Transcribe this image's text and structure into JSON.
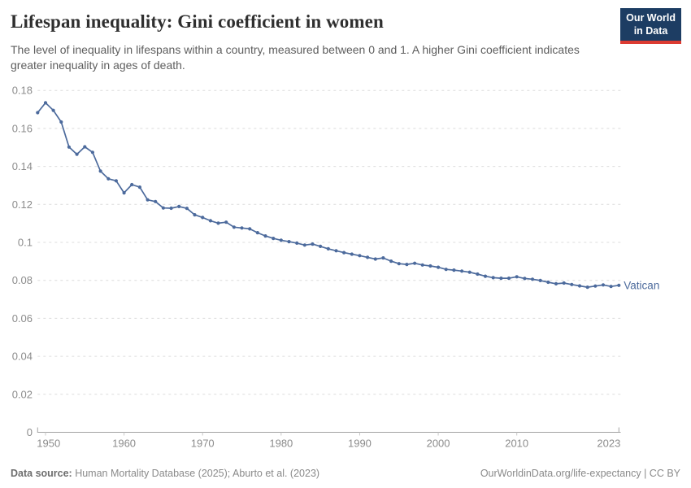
{
  "header": {
    "title": "Lifespan inequality: Gini coefficient in women",
    "subtitle": "The level of inequality in lifespans within a country, measured between 0 and 1. A higher Gini coefficient indicates greater inequality in ages of death.",
    "logo": {
      "line1": "Our World",
      "line2": "in Data",
      "bg_color": "#1d3d63",
      "bar_color": "#dc3b32"
    }
  },
  "footer": {
    "source_label": "Data source:",
    "source_text": " Human Mortality Database (2025); Aburto et al. (2023)",
    "right_text": "OurWorldinData.org/life-expectancy | CC BY"
  },
  "chart_data": {
    "type": "line",
    "title": "Lifespan inequality: Gini coefficient in women",
    "entity_label": "Vatican",
    "line_color": "#4c6a9c",
    "grid": "horizontal dashed",
    "legend_position": "end-of-line label",
    "ylim": [
      0,
      0.18
    ],
    "xlim": [
      1949,
      2023
    ],
    "xlabel": "",
    "ylabel": "",
    "x": [
      1949,
      1950,
      1951,
      1952,
      1953,
      1954,
      1955,
      1956,
      1957,
      1958,
      1959,
      1960,
      1961,
      1962,
      1963,
      1964,
      1965,
      1966,
      1967,
      1968,
      1969,
      1970,
      1971,
      1972,
      1973,
      1974,
      1975,
      1976,
      1977,
      1978,
      1979,
      1980,
      1981,
      1982,
      1983,
      1984,
      1985,
      1986,
      1987,
      1988,
      1989,
      1990,
      1991,
      1992,
      1993,
      1994,
      1995,
      1996,
      1997,
      1998,
      1999,
      2000,
      2001,
      2002,
      2003,
      2004,
      2005,
      2006,
      2007,
      2008,
      2009,
      2010,
      2011,
      2012,
      2013,
      2014,
      2015,
      2016,
      2017,
      2018,
      2019,
      2020,
      2021,
      2022,
      2023
    ],
    "series": [
      {
        "name": "Vatican",
        "values": [
          0.1683,
          0.1735,
          0.1695,
          0.1634,
          0.1502,
          0.1464,
          0.1503,
          0.1474,
          0.1375,
          0.1335,
          0.1324,
          0.1261,
          0.1304,
          0.1291,
          0.1224,
          0.1215,
          0.1181,
          0.118,
          0.1189,
          0.1179,
          0.1145,
          0.1131,
          0.1114,
          0.1101,
          0.1106,
          0.108,
          0.1076,
          0.1071,
          0.1051,
          0.1034,
          0.1021,
          0.1011,
          0.1004,
          0.0996,
          0.0986,
          0.0991,
          0.0979,
          0.0966,
          0.0956,
          0.0946,
          0.0938,
          0.093,
          0.0921,
          0.0912,
          0.0918,
          0.0901,
          0.0888,
          0.0884,
          0.089,
          0.0881,
          0.0876,
          0.0869,
          0.0858,
          0.0854,
          0.0849,
          0.0843,
          0.0833,
          0.0822,
          0.0814,
          0.0811,
          0.0811,
          0.0819,
          0.081,
          0.0806,
          0.0799,
          0.079,
          0.0782,
          0.0786,
          0.0778,
          0.0771,
          0.0764,
          0.077,
          0.0776,
          0.0768,
          0.0774
        ]
      }
    ],
    "yticks": [
      {
        "v": 0.18,
        "label": "0.18"
      },
      {
        "v": 0.16,
        "label": "0.16"
      },
      {
        "v": 0.14,
        "label": "0.14"
      },
      {
        "v": 0.12,
        "label": "0.12"
      },
      {
        "v": 0.1,
        "label": "0.1"
      },
      {
        "v": 0.08,
        "label": "0.08"
      },
      {
        "v": 0.06,
        "label": "0.06"
      },
      {
        "v": 0.04,
        "label": "0.04"
      },
      {
        "v": 0.02,
        "label": "0.02"
      },
      {
        "v": 0,
        "label": "0"
      }
    ],
    "xticks": [
      {
        "v": 1950,
        "label": "1950"
      },
      {
        "v": 1960,
        "label": "1960"
      },
      {
        "v": 1970,
        "label": "1970"
      },
      {
        "v": 1980,
        "label": "1980"
      },
      {
        "v": 1990,
        "label": "1990"
      },
      {
        "v": 2000,
        "label": "2000"
      },
      {
        "v": 2010,
        "label": "2010"
      },
      {
        "v": 2023,
        "label": "2023"
      }
    ]
  }
}
